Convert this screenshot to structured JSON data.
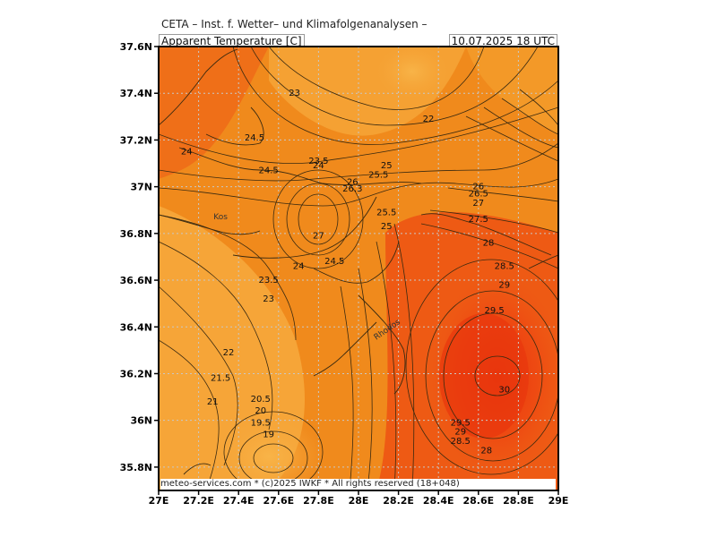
{
  "header": {
    "organization": "CETA – Inst. f. Wetter– und Klimafolgenanalysen –",
    "parameter": "Apparent Temperature [C]",
    "valid_time": "10.07.2025 18 UTC"
  },
  "footer": {
    "credit": "meteo-services.com * (c)2025 IWKF * All rights reserved (18+048)"
  },
  "axes": {
    "x_ticks": [
      "27E",
      "27.2E",
      "27.4E",
      "27.6E",
      "27.8E",
      "28E",
      "28.2E",
      "28.4E",
      "28.6E",
      "28.8E",
      "29E"
    ],
    "y_ticks": [
      "37.6N",
      "37.4N",
      "37.2N",
      "37N",
      "36.8N",
      "36.6N",
      "36.4N",
      "36.2N",
      "36N",
      "35.8N"
    ],
    "x_range": [
      27.0,
      29.0
    ],
    "y_range": [
      35.7,
      37.6
    ],
    "grid": true
  },
  "places": [
    {
      "name": "Kos",
      "lon": 27.31,
      "lat": 36.86
    },
    {
      "name": "Rhodos",
      "lon": 28.15,
      "lat": 36.38
    }
  ],
  "contour_labels": [
    {
      "text": "23",
      "lon": 27.68,
      "lat": 37.4
    },
    {
      "text": "22",
      "lon": 28.35,
      "lat": 37.29
    },
    {
      "text": "24.5",
      "lon": 27.48,
      "lat": 37.21
    },
    {
      "text": "24",
      "lon": 27.14,
      "lat": 37.15
    },
    {
      "text": "23.5",
      "lon": 27.8,
      "lat": 37.11
    },
    {
      "text": "24",
      "lon": 27.8,
      "lat": 37.09
    },
    {
      "text": "24.5",
      "lon": 27.55,
      "lat": 37.07
    },
    {
      "text": "25",
      "lon": 28.14,
      "lat": 37.09
    },
    {
      "text": "25.5",
      "lon": 28.1,
      "lat": 37.05
    },
    {
      "text": "26",
      "lon": 27.97,
      "lat": 37.02
    },
    {
      "text": "26.3",
      "lon": 27.97,
      "lat": 36.99
    },
    {
      "text": "26",
      "lon": 28.6,
      "lat": 37.0
    },
    {
      "text": "26.5",
      "lon": 28.6,
      "lat": 36.97
    },
    {
      "text": "27",
      "lon": 28.6,
      "lat": 36.93
    },
    {
      "text": "25.5",
      "lon": 28.14,
      "lat": 36.89
    },
    {
      "text": "27.5",
      "lon": 28.6,
      "lat": 36.86
    },
    {
      "text": "25",
      "lon": 28.14,
      "lat": 36.83
    },
    {
      "text": "27",
      "lon": 27.8,
      "lat": 36.79
    },
    {
      "text": "28",
      "lon": 28.65,
      "lat": 36.76
    },
    {
      "text": "24.5",
      "lon": 27.88,
      "lat": 36.68
    },
    {
      "text": "24",
      "lon": 27.7,
      "lat": 36.66
    },
    {
      "text": "28.5",
      "lon": 28.73,
      "lat": 36.66
    },
    {
      "text": "23.5",
      "lon": 27.55,
      "lat": 36.6
    },
    {
      "text": "29",
      "lon": 28.73,
      "lat": 36.58
    },
    {
      "text": "23",
      "lon": 27.55,
      "lat": 36.52
    },
    {
      "text": "29.5",
      "lon": 28.68,
      "lat": 36.47
    },
    {
      "text": "22",
      "lon": 27.35,
      "lat": 36.29
    },
    {
      "text": "21.5",
      "lon": 27.31,
      "lat": 36.18
    },
    {
      "text": "30",
      "lon": 28.73,
      "lat": 36.13
    },
    {
      "text": "20.5",
      "lon": 27.51,
      "lat": 36.09
    },
    {
      "text": "21",
      "lon": 27.27,
      "lat": 36.08
    },
    {
      "text": "20",
      "lon": 27.51,
      "lat": 36.04
    },
    {
      "text": "19.5",
      "lon": 27.51,
      "lat": 35.99
    },
    {
      "text": "29.5",
      "lon": 28.51,
      "lat": 35.99
    },
    {
      "text": "29",
      "lon": 28.51,
      "lat": 35.95
    },
    {
      "text": "19",
      "lon": 27.55,
      "lat": 35.94
    },
    {
      "text": "28.5",
      "lon": 28.51,
      "lat": 35.91
    },
    {
      "text": "28",
      "lon": 28.64,
      "lat": 35.87
    }
  ],
  "colors": {
    "background": "#ffffff",
    "field_low": "#f6a63a",
    "field_mid": "#f08a1c",
    "field_high": "#ee5a14",
    "field_peak": "#e8360d",
    "contour": "#3a2a10",
    "coast": "#3a2a10",
    "grid": "#c8c8c8"
  }
}
